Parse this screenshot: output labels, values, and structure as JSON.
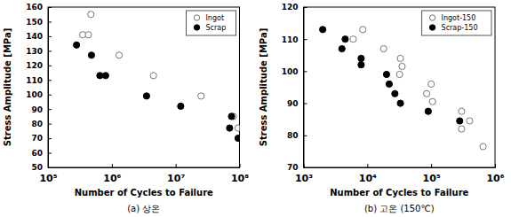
{
  "chart_data": [
    {
      "type": "scatter",
      "title": "(a) 상온",
      "x_label": "Number of Cycles to Failure",
      "y_label": "Stress Amplitude [MPa]",
      "log": "x",
      "legend": "upper right",
      "xlim": [
        100000,
        100000000
      ],
      "xticks": [
        {
          "value": 100000,
          "label": "10⁵"
        },
        {
          "value": 1000000,
          "label": "10⁶"
        },
        {
          "value": 10000000,
          "label": "10⁷"
        },
        {
          "value": 100000000,
          "label": "10⁸"
        }
      ],
      "ylim": [
        50,
        160
      ],
      "yticks": [
        50,
        60,
        70,
        80,
        90,
        100,
        110,
        120,
        130,
        140,
        150,
        160
      ],
      "series": [
        {
          "name": "Ingot",
          "color": "#000000",
          "marker": "open-circle",
          "x": [
            350000,
            430000,
            470000,
            1300000,
            4500000,
            25000000,
            80000000,
            95000000
          ],
          "values": [
            141,
            141,
            155,
            127,
            113,
            99,
            85,
            77
          ]
        },
        {
          "name": "Scrap",
          "color": "#000000",
          "marker": "filled-circle",
          "x": [
            280000,
            480000,
            650000,
            800000,
            3500000,
            12000000,
            75000000,
            70000000,
            95000000
          ],
          "values": [
            134,
            127,
            113,
            113,
            99,
            92,
            85,
            77,
            70
          ]
        }
      ]
    },
    {
      "type": "scatter",
      "title": "(b) 고온 (150℃)",
      "x_label": "Number of Cycles to Failure",
      "y_label": "Stress Amplitude [MPa]",
      "log": "x",
      "legend": "upper right",
      "xlim": [
        1000,
        1000000
      ],
      "xticks": [
        {
          "value": 1000,
          "label": "10³"
        },
        {
          "value": 10000,
          "label": "10⁴"
        },
        {
          "value": 100000,
          "label": "10⁵"
        },
        {
          "value": 1000000,
          "label": "10⁶"
        }
      ],
      "ylim": [
        70,
        120
      ],
      "yticks": [
        70,
        80,
        90,
        100,
        110,
        120
      ],
      "series": [
        {
          "name": "Ingot-150",
          "color": "#000000",
          "marker": "open-circle",
          "x": [
            6000,
            8500,
            18000,
            33000,
            35000,
            32000,
            85000,
            100000,
            105000,
            300000,
            300000,
            400000,
            650000
          ],
          "values": [
            110,
            113,
            107,
            104,
            101.5,
            99,
            93,
            96,
            90.5,
            87.5,
            82,
            84.5,
            76.5
          ]
        },
        {
          "name": "Scrap-150",
          "color": "#000000",
          "marker": "filled-circle",
          "x": [
            2000,
            4000,
            4500,
            8000,
            8000,
            20000,
            22000,
            27000,
            33000,
            90000,
            280000
          ],
          "values": [
            113,
            107,
            110,
            102,
            104,
            99,
            96,
            93,
            90,
            87.5,
            84.5
          ]
        }
      ]
    }
  ]
}
